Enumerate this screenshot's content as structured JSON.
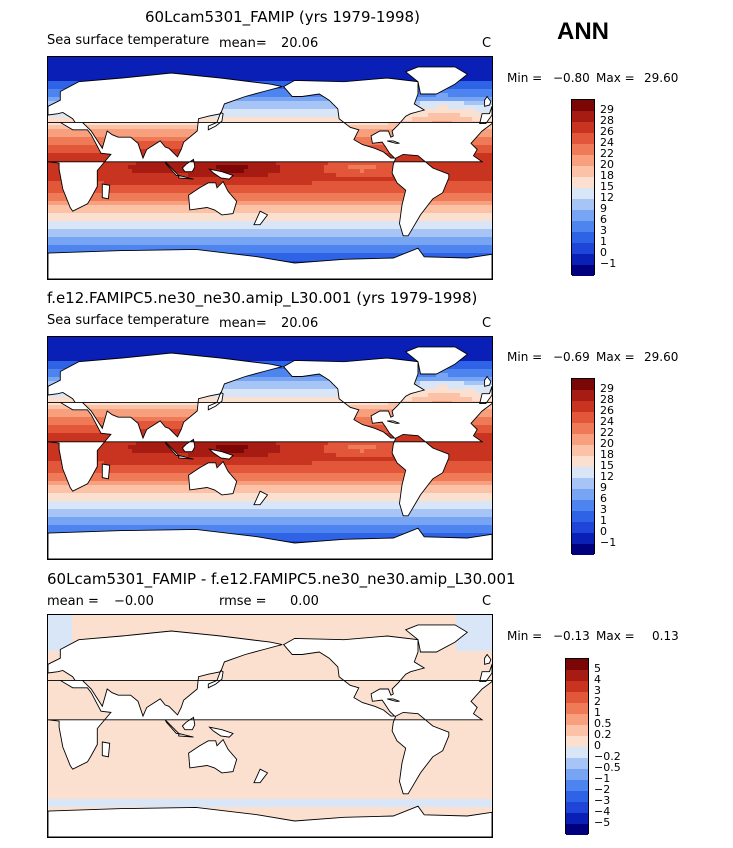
{
  "season": "ANN",
  "panels": [
    {
      "title": "60Lcam5301_FAMIP (yrs 1979-1998)",
      "variable": "Sea surface temperature",
      "mean_label": "mean=",
      "mean_value": "20.06",
      "units": "C",
      "min_label": "Min =",
      "min_value": "−0.80",
      "max_label": "Max =",
      "max_value": "29.60"
    },
    {
      "title": "f.e12.FAMIPC5.ne30_ne30.amip_L30.001 (yrs 1979-1998)",
      "variable": "Sea surface temperature",
      "mean_label": "mean=",
      "mean_value": "20.06",
      "units": "C",
      "min_label": "Min =",
      "min_value": "−0.69",
      "max_label": "Max =",
      "max_value": "29.60"
    },
    {
      "title": "60Lcam5301_FAMIP - f.e12.FAMIPC5.ne30_ne30.amip_L30.001",
      "mean_label": "mean =",
      "mean_value": "−0.00",
      "rmse_label": "rmse =",
      "rmse_value": "0.00",
      "units": "C",
      "min_label": "Min =",
      "min_value": "−0.13",
      "max_label": "Max =",
      "max_value": "0.13"
    }
  ],
  "chart_data": [
    {
      "type": "heatmap",
      "title": "60Lcam5301_FAMIP (yrs 1979-1998)",
      "variable": "Sea surface temperature",
      "units": "C",
      "mean": 20.06,
      "min": -0.8,
      "max": 29.6,
      "contour_levels": [
        "−1",
        "0",
        "1",
        "3",
        "6",
        "9",
        "12",
        "15",
        "18",
        "20",
        "22",
        "24",
        "26",
        "28",
        "29"
      ],
      "colors": [
        "#00007f",
        "#0a1fb6",
        "#1f44d8",
        "#2f63e6",
        "#4d84ef",
        "#78a5f3",
        "#a6c4f6",
        "#d8e6f8",
        "#fbe0d0",
        "#fcc2a8",
        "#f89f7d",
        "#ef7a57",
        "#e2563a",
        "#c93420",
        "#a61b12",
        "#7a0606"
      ]
    },
    {
      "type": "heatmap",
      "title": "f.e12.FAMIPC5.ne30_ne30.amip_L30.001 (yrs 1979-1998)",
      "variable": "Sea surface temperature",
      "units": "C",
      "mean": 20.06,
      "min": -0.69,
      "max": 29.6,
      "contour_levels": [
        "−1",
        "0",
        "1",
        "3",
        "6",
        "9",
        "12",
        "15",
        "18",
        "20",
        "22",
        "24",
        "26",
        "28",
        "29"
      ],
      "colors": [
        "#00007f",
        "#0a1fb6",
        "#1f44d8",
        "#2f63e6",
        "#4d84ef",
        "#78a5f3",
        "#a6c4f6",
        "#d8e6f8",
        "#fbe0d0",
        "#fcc2a8",
        "#f89f7d",
        "#ef7a57",
        "#e2563a",
        "#c93420",
        "#a61b12",
        "#7a0606"
      ]
    },
    {
      "type": "heatmap",
      "title": "60Lcam5301_FAMIP - f.e12.FAMIPC5.ne30_ne30.amip_L30.001",
      "units": "C",
      "mean": -0.0,
      "rmse": 0.0,
      "min": -0.13,
      "max": 0.13,
      "contour_levels": [
        "−5",
        "−4",
        "−3",
        "−2",
        "−1",
        "−0.5",
        "−0.2",
        "0",
        "0.2",
        "0.5",
        "1",
        "2",
        "3",
        "4",
        "5"
      ],
      "colors": [
        "#00007f",
        "#0a1fb6",
        "#1f44d8",
        "#2f63e6",
        "#4d84ef",
        "#78a5f3",
        "#a6c4f6",
        "#d8e6f8",
        "#fbe0d0",
        "#fcc2a8",
        "#f89f7d",
        "#ef7a57",
        "#e2563a",
        "#c93420",
        "#a61b12",
        "#7a0606"
      ]
    }
  ]
}
